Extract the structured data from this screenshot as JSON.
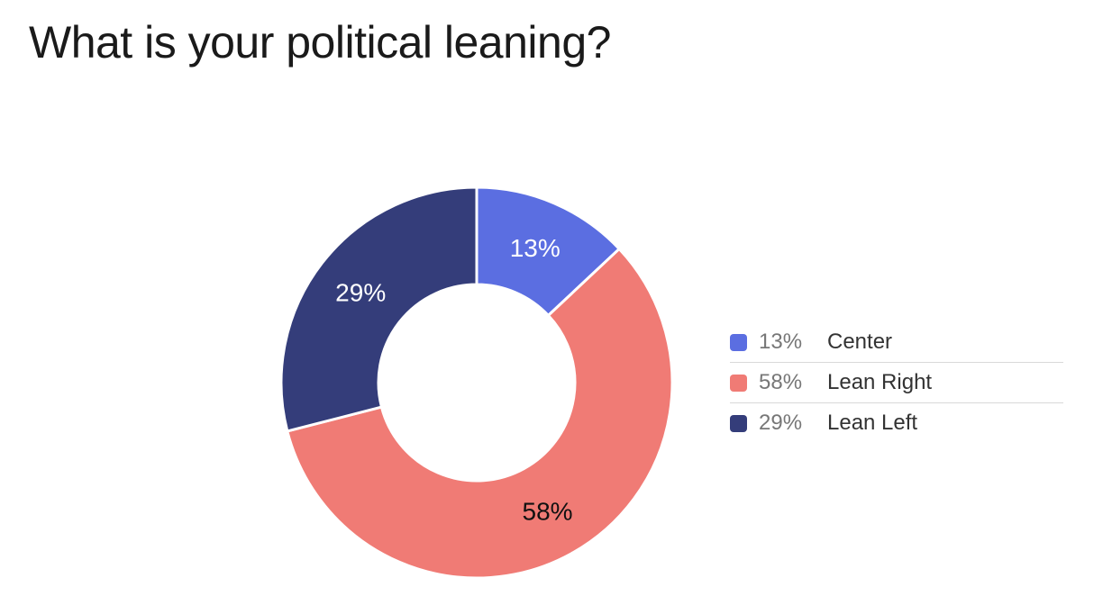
{
  "title": "What is your political leaning?",
  "chart_data": {
    "type": "pie",
    "donut": true,
    "title": "What is your political leaning?",
    "legend_position": "right",
    "series": [
      {
        "name": "Center",
        "value": 13,
        "label": "13%",
        "color": "#5b6ee1",
        "label_color": "#ffffff"
      },
      {
        "name": "Lean Right",
        "value": 58,
        "label": "58%",
        "color": "#f07b75",
        "label_color": "#111111"
      },
      {
        "name": "Lean Left",
        "value": 29,
        "label": "29%",
        "color": "#343d7a",
        "label_color": "#ffffff"
      }
    ]
  }
}
